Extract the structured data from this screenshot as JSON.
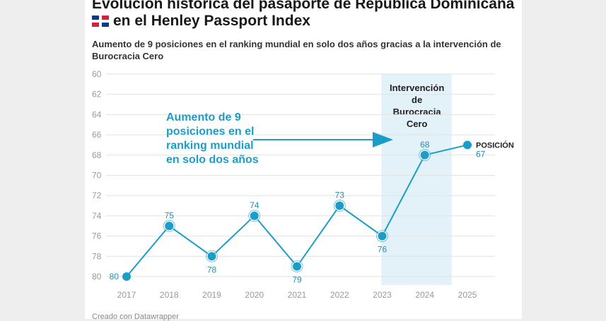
{
  "header": {
    "title_line1": "Evolución histórica del pasaporte de República Dominicana",
    "title_line2": "en el Henley Passport Index",
    "flag_icon": "dominican-republic-flag",
    "subtitle": "Aumento de 9 posiciones en el ranking mundial en solo dos años gracias a la intervención de Burocracia Cero"
  },
  "footer": "Creado con Datawrapper",
  "chart_data": {
    "type": "line",
    "x": [
      "2017",
      "2018",
      "2019",
      "2020",
      "2021",
      "2022",
      "2023",
      "2024",
      "2025"
    ],
    "series": [
      {
        "name": "POSICIÓN",
        "values": [
          80,
          75,
          78,
          74,
          79,
          73,
          76,
          68,
          67
        ]
      }
    ],
    "ylim": [
      80,
      60
    ],
    "y_inverted": true,
    "yticks": [
      60,
      62,
      64,
      66,
      68,
      70,
      72,
      74,
      76,
      78,
      80
    ],
    "grid": true,
    "line_color": "#1c9dc8",
    "highlight": {
      "from": "2023",
      "to": "2024",
      "label": [
        "Intervención",
        "de",
        "Burocracia",
        "Cero"
      ],
      "color": "#e3f1f9"
    },
    "annotation": {
      "lines": [
        "Aumento de 9",
        "posiciones en el",
        "ranking mundial",
        "en solo dos años"
      ],
      "color": "#1c9dc8"
    }
  }
}
